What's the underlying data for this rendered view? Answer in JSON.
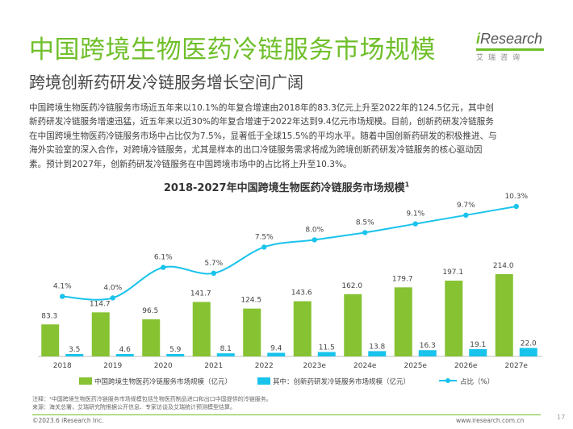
{
  "header": {
    "title": "中国跨境生物医药冷链服务市场规模",
    "subtitle": "跨境创新药研发冷链服务增长空间广阔",
    "logo_text_i": "i",
    "logo_text_rest": "Research",
    "logo_sub": "艾瑞咨询"
  },
  "paragraph": {
    "lines": [
      "中国跨境生物医药冷链服务市场近五年来以10.1%的年复合增速由2018年的83.3亿元上升至2022年的124.5亿元，其中创",
      "新药研发冷链服务增速迅猛，近五年来以近30%的年复合增速于2022年达到9.4亿元市场规模。目前，创新药研发冷链服务",
      "在中国跨境生物医药冷链服务市场中占比仅为7.5%，显著低于全球15.5%的平均水平。随着中国创新药研发的积极推进、与",
      "海外实验室的深入合作，对跨境冷链服务，尤其是样本的出口冷链服务需求将成为跨境创新药研发冷链服务的核心驱动因",
      "素。预计到2027年，创新药研发冷链服务在中国跨境市场中的占比将上升至10.3%。"
    ]
  },
  "colors": {
    "green": "#86c232",
    "cyan": "#19c3ec",
    "line": "#19c3ec",
    "title_green": "#6fbf2a"
  },
  "chart_data": {
    "type": "bar",
    "title": "2018-2027年中国跨境生物医药冷链服务市场规模",
    "title_sup": "1",
    "categories": [
      "2018",
      "2019",
      "2020",
      "2021",
      "2022",
      "2023e",
      "2024e",
      "2025e",
      "2026e",
      "2027e"
    ],
    "series": [
      {
        "name": "中国跨境生物医药冷链服务市场规模（亿元）",
        "kind": "bar",
        "values": [
          83.3,
          114.7,
          96.5,
          141.7,
          124.5,
          143.6,
          162.0,
          179.7,
          197.1,
          214.0
        ],
        "labels": [
          "83.3",
          "114.7",
          "96.5",
          "141.7",
          "124.5",
          "143.6",
          "162.0",
          "179.7",
          "197.1",
          "214.0"
        ]
      },
      {
        "name": "其中：创新药研发冷链服务市场规模（亿元）",
        "kind": "bar",
        "values": [
          3.5,
          4.6,
          5.9,
          8.1,
          9.4,
          11.5,
          13.8,
          16.3,
          19.1,
          22.0
        ],
        "labels": [
          "3.5",
          "4.6",
          "5.9",
          "8.1",
          "9.4",
          "11.5",
          "13.8",
          "16.3",
          "19.1",
          "22.0"
        ]
      },
      {
        "name": "占比（%）",
        "kind": "line",
        "values": [
          4.1,
          4.0,
          6.1,
          5.7,
          7.5,
          8.0,
          8.5,
          9.1,
          9.7,
          10.3
        ],
        "labels": [
          "4.1%",
          "4.0%",
          "6.1%",
          "5.7%",
          "7.5%",
          "8.0%",
          "8.5%",
          "9.1%",
          "9.7%",
          "10.3%"
        ]
      }
    ],
    "legend_position": "bottom",
    "grid": false
  },
  "footer": {
    "note": "注释：¹中国跨境生物医药冷链服务市场规模包括生物医药制品进口和出口中国提供的冷链服务。",
    "source": "来源：海关总署，艾瑞研究院根据公开信息、专家访谈及艾瑞统计预测模型估算。",
    "copyright": "©2023.6 iResearch Inc.",
    "website": "www.iresearch.com.cn",
    "page": "17"
  }
}
